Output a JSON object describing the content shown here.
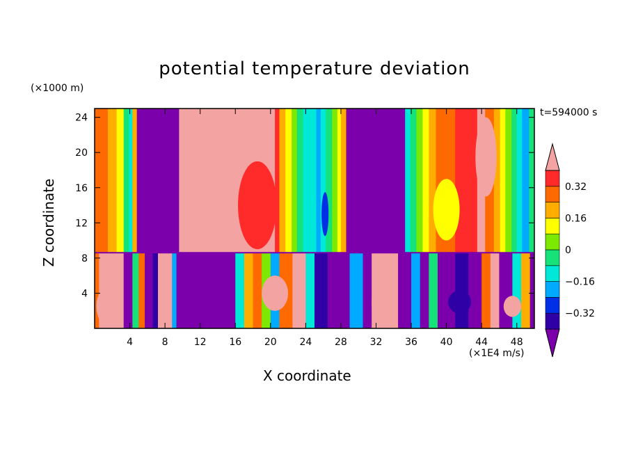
{
  "chart_data": {
    "type": "heatmap",
    "title": "potential temperature deviation",
    "xlabel": "X coordinate",
    "ylabel": "Z coordinate",
    "x_unit": "(×1E4 m/s)",
    "z_unit": "(×1000 m)",
    "time_label": "t=594000 s",
    "xlim": [
      0,
      50
    ],
    "ylim": [
      0,
      25
    ],
    "x_ticks": [
      "4",
      "8",
      "12",
      "16",
      "20",
      "24",
      "28",
      "32",
      "36",
      "40",
      "44",
      "48"
    ],
    "y_ticks": [
      "4",
      "8",
      "12",
      "16",
      "20",
      "24"
    ],
    "colorbar": {
      "levels": [
        -0.4,
        -0.32,
        -0.24,
        -0.16,
        -0.08,
        0,
        0.08,
        0.16,
        0.24,
        0.32,
        0.4
      ],
      "labels": [
        "0.32",
        "0.16",
        "0",
        "−0.16",
        "−0.32"
      ],
      "colors": [
        "#7b00ab",
        "#2e00a6",
        "#0030e6",
        "#00aaff",
        "#00e8d8",
        "#16e27a",
        "#7de800",
        "#ffff00",
        "#ffae00",
        "#ff6a00",
        "#ff2a2a",
        "#f4a3a3"
      ]
    },
    "columns_upper": [
      [
        0,
        "#ff6a00"
      ],
      [
        1.5,
        "#ffae00"
      ],
      [
        2.5,
        "#ffff00"
      ],
      [
        3.3,
        "#16e27a"
      ],
      [
        3.9,
        "#00e8d8"
      ],
      [
        4.3,
        "#ffae00"
      ],
      [
        4.8,
        "#7b00ab"
      ],
      [
        9.6,
        "#f4a3a3"
      ],
      [
        20.5,
        "#ff2a2a"
      ],
      [
        21.0,
        "#ffae00"
      ],
      [
        21.7,
        "#ffff00"
      ],
      [
        22.4,
        "#7de800"
      ],
      [
        23.0,
        "#16e27a"
      ],
      [
        23.7,
        "#00e8d8"
      ],
      [
        25.2,
        "#00aaff"
      ],
      [
        25.7,
        "#00e8d8"
      ],
      [
        26.3,
        "#16e27a"
      ],
      [
        27.0,
        "#7de800"
      ],
      [
        27.6,
        "#ffff00"
      ],
      [
        28.0,
        "#ffae00"
      ],
      [
        28.6,
        "#7b00ab"
      ],
      [
        35.3,
        "#00e8d8"
      ],
      [
        35.9,
        "#16e27a"
      ],
      [
        36.6,
        "#7de800"
      ],
      [
        37.3,
        "#ffff00"
      ],
      [
        38.0,
        "#ffae00"
      ],
      [
        38.8,
        "#ff6a00"
      ],
      [
        41.0,
        "#ff2a2a"
      ],
      [
        43.5,
        "#f4a3a3"
      ],
      [
        44.4,
        "#ff6a00"
      ],
      [
        45.4,
        "#ffae00"
      ],
      [
        46.1,
        "#ffff00"
      ],
      [
        46.7,
        "#7de800"
      ],
      [
        47.4,
        "#16e27a"
      ],
      [
        48.0,
        "#00e8d8"
      ],
      [
        48.6,
        "#00aaff"
      ],
      [
        49.4,
        "#16e27a"
      ]
    ],
    "columns_lower": [
      [
        0,
        "#ff6a00"
      ],
      [
        0.5,
        "#f4a3a3"
      ],
      [
        3.3,
        "#7b00ab"
      ],
      [
        4.3,
        "#16e27a"
      ],
      [
        5.0,
        "#ff6a00"
      ],
      [
        5.7,
        "#7b00ab"
      ],
      [
        6.6,
        "#2e00a6"
      ],
      [
        7.2,
        "#f4a3a3"
      ],
      [
        8.8,
        "#00aaff"
      ],
      [
        9.3,
        "#7b00ab"
      ],
      [
        16.0,
        "#00e8d8"
      ],
      [
        17.0,
        "#ffae00"
      ],
      [
        18.0,
        "#ff6a00"
      ],
      [
        19.0,
        "#7de800"
      ],
      [
        20.0,
        "#00aaff"
      ],
      [
        21.0,
        "#ff6a00"
      ],
      [
        22.5,
        "#f4a3a3"
      ],
      [
        24.0,
        "#00e8d8"
      ],
      [
        25.0,
        "#2e00a6"
      ],
      [
        26.5,
        "#7b00ab"
      ],
      [
        29.0,
        "#00aaff"
      ],
      [
        30.5,
        "#7b00ab"
      ],
      [
        31.5,
        "#f4a3a3"
      ],
      [
        34.5,
        "#7b00ab"
      ],
      [
        36.0,
        "#00aaff"
      ],
      [
        37.0,
        "#7b00ab"
      ],
      [
        38.0,
        "#16e27a"
      ],
      [
        39.0,
        "#7b00ab"
      ],
      [
        41.0,
        "#2e00a6"
      ],
      [
        42.5,
        "#7b00ab"
      ],
      [
        44.0,
        "#ff6a00"
      ],
      [
        45.0,
        "#f4a3a3"
      ],
      [
        46.0,
        "#7b00ab"
      ],
      [
        47.5,
        "#00e8d8"
      ],
      [
        48.5,
        "#ffae00"
      ],
      [
        49.5,
        "#7b00ab"
      ]
    ],
    "inversion_z": 8.6,
    "blobs": [
      {
        "x": 18.5,
        "z": 14,
        "rx": 2.2,
        "rz": 5,
        "color": "#ff2a2a"
      },
      {
        "x": 40.0,
        "z": 13.5,
        "rx": 1.5,
        "rz": 3.5,
        "color": "#ffff00"
      },
      {
        "x": 44.5,
        "z": 19.5,
        "rx": 1.2,
        "rz": 4.5,
        "color": "#f4a3a3"
      },
      {
        "x": 26.2,
        "z": 13,
        "rx": 0.4,
        "rz": 2.5,
        "color": "#0030e6"
      },
      {
        "x": 12.5,
        "z": 3.5,
        "rx": 2.5,
        "rz": 1.5,
        "color": "#7b00ab"
      },
      {
        "x": 20.5,
        "z": 4,
        "rx": 1.5,
        "rz": 2,
        "color": "#f4a3a3"
      },
      {
        "x": 32.5,
        "z": 3,
        "rx": 1.0,
        "rz": 3,
        "color": "#f4a3a3"
      },
      {
        "x": 41.5,
        "z": 3,
        "rx": 1.3,
        "rz": 1.3,
        "color": "#2e00a6"
      },
      {
        "x": 47.5,
        "z": 2.5,
        "rx": 1.0,
        "rz": 1.2,
        "color": "#f4a3a3"
      },
      {
        "x": 1.5,
        "z": 2.5,
        "rx": 1.3,
        "rz": 2.2,
        "color": "#f4a3a3"
      }
    ]
  }
}
